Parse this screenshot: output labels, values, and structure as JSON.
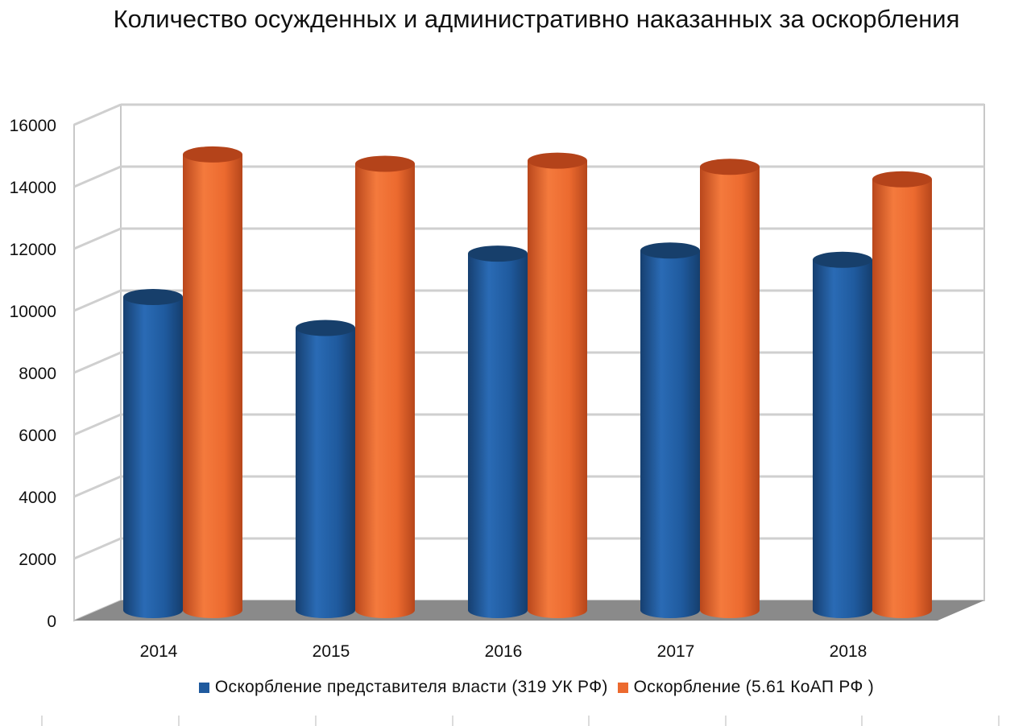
{
  "chart_data": {
    "type": "bar",
    "title": "Количество осужденных и административно наказанных за оскорбления",
    "categories": [
      "2014",
      "2015",
      "2016",
      "2017",
      "2018"
    ],
    "series": [
      {
        "name": "Оскорбление представителя власти (319 УК РФ)",
        "color": "#1F5A9E",
        "values": [
          10000,
          9000,
          11400,
          11500,
          11200
        ]
      },
      {
        "name": "Оскорбление (5.61 КоАП РФ )",
        "color": "#EC6A2F",
        "values": [
          14600,
          14300,
          14400,
          14200,
          13800
        ]
      }
    ],
    "yticks": [
      "0",
      "2000",
      "4000",
      "6000",
      "8000",
      "10000",
      "12000",
      "14000",
      "16000"
    ],
    "ylim": [
      0,
      16000
    ],
    "grid": true,
    "legend_position": "bottom"
  }
}
